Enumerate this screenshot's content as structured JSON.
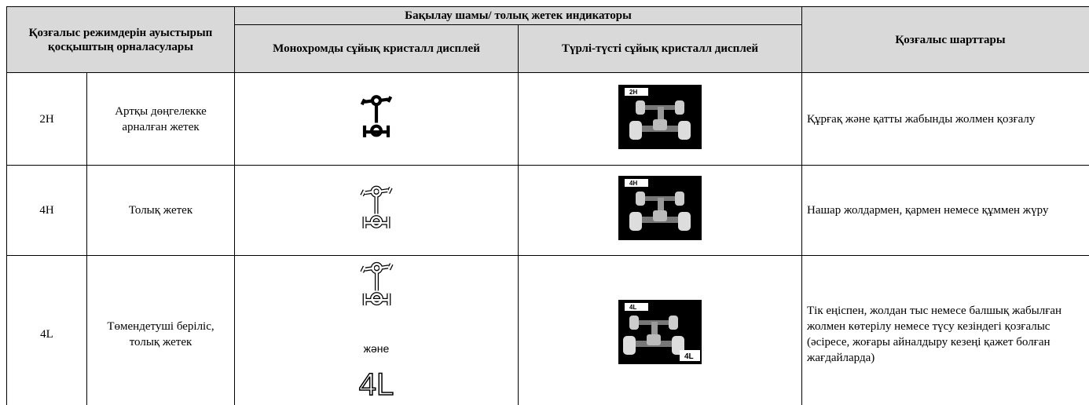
{
  "header": {
    "switch_position": "Қозғалыс режимдерін ауыстырып қосқыштың орналасулары",
    "indicator": "Бақылау шамы/ толық жетек индикаторы",
    "mono": "Монохромды сұйық кристалл дисплей",
    "color": "Түрлі-түсті сұйық кристалл дисплей",
    "conditions": "Қозғалыс шарттары"
  },
  "rows": [
    {
      "mode": "2H",
      "description": "Артқы дөңгелекке арналған жетек",
      "display_label": "2H",
      "conditions": "Құрғақ және қатты жабынды жолмен қозғалу"
    },
    {
      "mode": "4H",
      "description": "Толық жетек",
      "display_label": "4H",
      "conditions": "Нашар жолдармен, қармен немесе құммен жүру"
    },
    {
      "mode": "4L",
      "description": "Төмендетуші беріліс, толық жетек",
      "mono_and": "және",
      "mono_label": "4L",
      "display_label": "4L",
      "display_badge": "4L",
      "conditions": "Тік еңіспен, жолдан тыс немесе балшық жабылған жолмен көтерілу немесе түсу кезіндегі қозғалыс (әсіресе, жоғары айналдыру кезеңі қажет болған жағдайларда)"
    }
  ]
}
